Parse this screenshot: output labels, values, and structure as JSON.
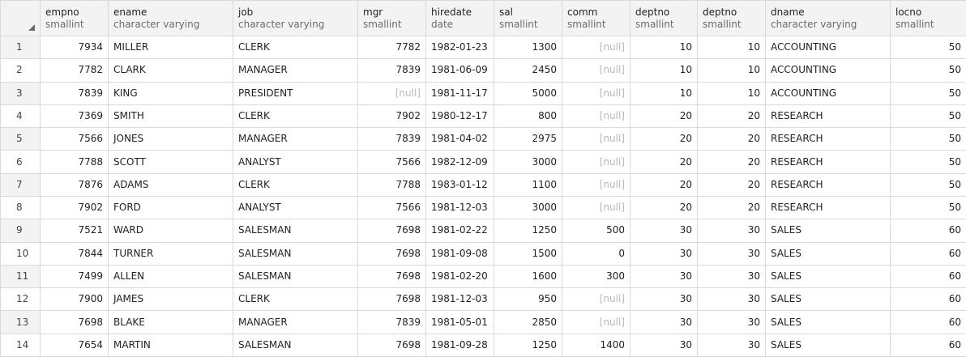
{
  "columns": [
    {
      "name": "empno",
      "type": "smallint",
      "align": "num"
    },
    {
      "name": "ename",
      "type": "character varying",
      "align": "txt"
    },
    {
      "name": "job",
      "type": "character varying",
      "align": "txt"
    },
    {
      "name": "mgr",
      "type": "smallint",
      "align": "num"
    },
    {
      "name": "hiredate",
      "type": "date",
      "align": "txt"
    },
    {
      "name": "sal",
      "type": "smallint",
      "align": "num"
    },
    {
      "name": "comm",
      "type": "smallint",
      "align": "num"
    },
    {
      "name": "deptno",
      "type": "smallint",
      "align": "num"
    },
    {
      "name": "deptno",
      "type": "smallint",
      "align": "num"
    },
    {
      "name": "dname",
      "type": "character varying",
      "align": "txt"
    },
    {
      "name": "locno",
      "type": "smallint",
      "align": "num"
    }
  ],
  "null_label": "[null]",
  "rows": [
    {
      "n": "1",
      "cells": [
        "7934",
        "MILLER",
        "CLERK",
        "7782",
        "1982-01-23",
        "1300",
        null,
        "10",
        "10",
        "ACCOUNTING",
        "50"
      ]
    },
    {
      "n": "2",
      "cells": [
        "7782",
        "CLARK",
        "MANAGER",
        "7839",
        "1981-06-09",
        "2450",
        null,
        "10",
        "10",
        "ACCOUNTING",
        "50"
      ]
    },
    {
      "n": "3",
      "cells": [
        "7839",
        "KING",
        "PRESIDENT",
        null,
        "1981-11-17",
        "5000",
        null,
        "10",
        "10",
        "ACCOUNTING",
        "50"
      ]
    },
    {
      "n": "4",
      "cells": [
        "7369",
        "SMITH",
        "CLERK",
        "7902",
        "1980-12-17",
        "800",
        null,
        "20",
        "20",
        "RESEARCH",
        "50"
      ]
    },
    {
      "n": "5",
      "cells": [
        "7566",
        "JONES",
        "MANAGER",
        "7839",
        "1981-04-02",
        "2975",
        null,
        "20",
        "20",
        "RESEARCH",
        "50"
      ]
    },
    {
      "n": "6",
      "cells": [
        "7788",
        "SCOTT",
        "ANALYST",
        "7566",
        "1982-12-09",
        "3000",
        null,
        "20",
        "20",
        "RESEARCH",
        "50"
      ]
    },
    {
      "n": "7",
      "cells": [
        "7876",
        "ADAMS",
        "CLERK",
        "7788",
        "1983-01-12",
        "1100",
        null,
        "20",
        "20",
        "RESEARCH",
        "50"
      ]
    },
    {
      "n": "8",
      "cells": [
        "7902",
        "FORD",
        "ANALYST",
        "7566",
        "1981-12-03",
        "3000",
        null,
        "20",
        "20",
        "RESEARCH",
        "50"
      ]
    },
    {
      "n": "9",
      "cells": [
        "7521",
        "WARD",
        "SALESMAN",
        "7698",
        "1981-02-22",
        "1250",
        "500",
        "30",
        "30",
        "SALES",
        "60"
      ]
    },
    {
      "n": "10",
      "cells": [
        "7844",
        "TURNER",
        "SALESMAN",
        "7698",
        "1981-09-08",
        "1500",
        "0",
        "30",
        "30",
        "SALES",
        "60"
      ]
    },
    {
      "n": "11",
      "cells": [
        "7499",
        "ALLEN",
        "SALESMAN",
        "7698",
        "1981-02-20",
        "1600",
        "300",
        "30",
        "30",
        "SALES",
        "60"
      ]
    },
    {
      "n": "12",
      "cells": [
        "7900",
        "JAMES",
        "CLERK",
        "7698",
        "1981-12-03",
        "950",
        null,
        "30",
        "30",
        "SALES",
        "60"
      ]
    },
    {
      "n": "13",
      "cells": [
        "7698",
        "BLAKE",
        "MANAGER",
        "7839",
        "1981-05-01",
        "2850",
        null,
        "30",
        "30",
        "SALES",
        "60"
      ]
    },
    {
      "n": "14",
      "cells": [
        "7654",
        "MARTIN",
        "SALESMAN",
        "7698",
        "1981-09-28",
        "1250",
        "1400",
        "30",
        "30",
        "SALES",
        "60"
      ]
    }
  ]
}
